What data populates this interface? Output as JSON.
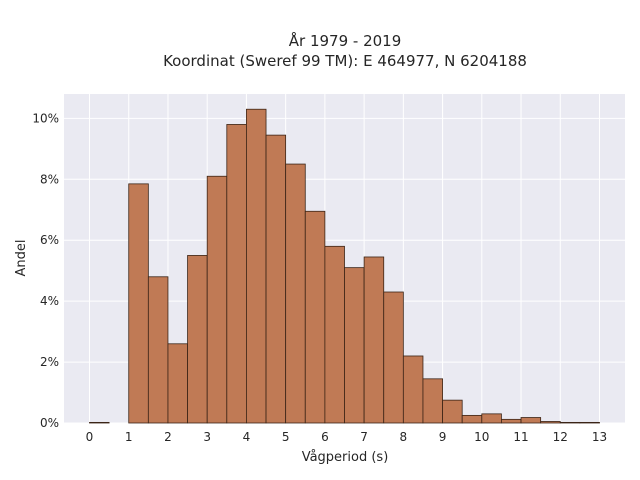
{
  "chart_data": {
    "type": "bar",
    "title_line1": "År 1979 - 2019",
    "title_line2": "Koordinat (Sweref 99 TM): E 464977, N 6204188",
    "xlabel": "Vågperiod (s)",
    "ylabel": "Andel",
    "x_ticks": [
      "0",
      "1",
      "2",
      "3",
      "4",
      "5",
      "6",
      "7",
      "8",
      "9",
      "10",
      "11",
      "12",
      "13"
    ],
    "y_ticks": [
      "0%",
      "2%",
      "4%",
      "6%",
      "8%",
      "10%"
    ],
    "y_tick_values": [
      0,
      2,
      4,
      6,
      8,
      10
    ],
    "xlim": [
      -0.65,
      13.65
    ],
    "ylim": [
      0,
      10.8
    ],
    "bin_width": 0.5,
    "bin_starts": [
      0,
      0.5,
      1,
      1.5,
      2,
      2.5,
      3,
      3.5,
      4,
      4.5,
      5,
      5.5,
      6,
      6.5,
      7,
      7.5,
      8,
      8.5,
      9,
      9.5,
      10,
      10.5,
      11,
      11.5,
      12,
      12.5
    ],
    "values": [
      0.02,
      0.0,
      7.85,
      4.8,
      2.6,
      5.5,
      8.1,
      9.8,
      10.3,
      9.45,
      8.5,
      6.95,
      5.8,
      5.1,
      5.45,
      4.3,
      2.2,
      1.45,
      0.75,
      0.25,
      0.3,
      0.12,
      0.18,
      0.05,
      0.02,
      0.02
    ],
    "grid": true,
    "colors": {
      "bar_fill": "#c07a55",
      "bar_edge": "#3b2416",
      "plot_bg": "#eaeaf2",
      "grid": "#ffffff",
      "text": "#262626"
    }
  }
}
